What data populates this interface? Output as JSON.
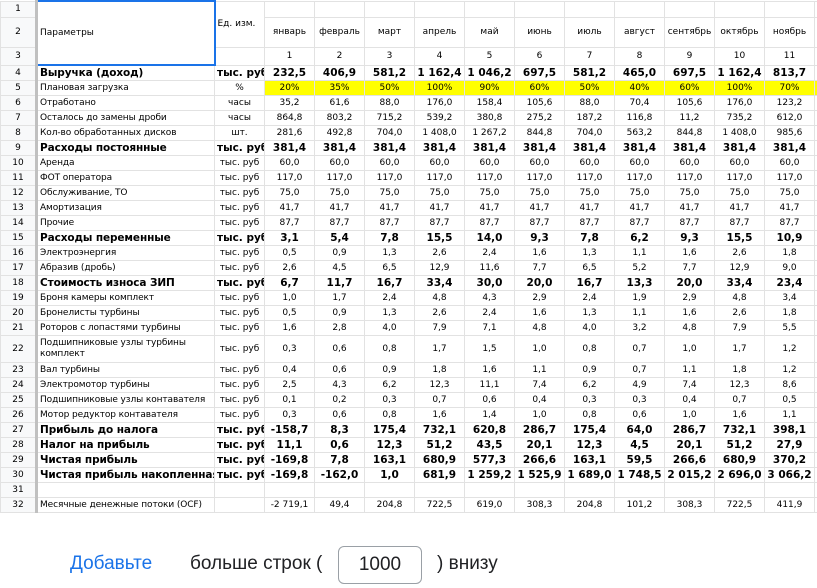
{
  "header": {
    "param_label": "Параметры",
    "unit_label": "Ед. изм.",
    "months": [
      "январь",
      "февраль",
      "март",
      "апрель",
      "май",
      "июнь",
      "июль",
      "август",
      "сентябрь",
      "октябрь",
      "ноябрь",
      "д"
    ],
    "month_numbers": [
      "1",
      "2",
      "3",
      "4",
      "5",
      "6",
      "7",
      "8",
      "9",
      "10",
      "11",
      ""
    ],
    "row_numbers": [
      "1",
      "2",
      "3"
    ]
  },
  "rows": [
    {
      "n": "4",
      "name": "Выручка (доход)",
      "unit": "тыс. руб",
      "bold": true,
      "vals": [
        "232,5",
        "406,9",
        "581,2",
        "1 162,4",
        "1 046,2",
        "697,5",
        "581,2",
        "465,0",
        "697,5",
        "1 162,4",
        "813,7",
        "4"
      ]
    },
    {
      "n": "5",
      "name": "Плановая загрузка",
      "unit": "%",
      "yellow": true,
      "vals": [
        "20%",
        "35%",
        "50%",
        "100%",
        "90%",
        "60%",
        "50%",
        "40%",
        "60%",
        "100%",
        "70%",
        ""
      ]
    },
    {
      "n": "6",
      "name": "Отработано",
      "unit": "часы",
      "vals": [
        "35,2",
        "61,6",
        "88,0",
        "176,0",
        "158,4",
        "105,6",
        "88,0",
        "70,4",
        "105,6",
        "176,0",
        "123,2",
        ""
      ]
    },
    {
      "n": "7",
      "name": "Осталось до замены дроби",
      "unit": "часы",
      "vals": [
        "864,8",
        "803,2",
        "715,2",
        "539,2",
        "380,8",
        "275,2",
        "187,2",
        "116,8",
        "11,2",
        "735,2",
        "612,0",
        ""
      ]
    },
    {
      "n": "8",
      "name": "Кол-во обработанных дисков",
      "unit": "шт.",
      "vals": [
        "281,6",
        "492,8",
        "704,0",
        "1 408,0",
        "1 267,2",
        "844,8",
        "704,0",
        "563,2",
        "844,8",
        "1 408,0",
        "985,6",
        ""
      ]
    },
    {
      "n": "9",
      "name": "Расходы постоянные",
      "unit": "тыс. руб",
      "bold": true,
      "vals": [
        "381,4",
        "381,4",
        "381,4",
        "381,4",
        "381,4",
        "381,4",
        "381,4",
        "381,4",
        "381,4",
        "381,4",
        "381,4",
        "3"
      ]
    },
    {
      "n": "10",
      "name": "Аренда",
      "unit": "тыс. руб",
      "vals": [
        "60,0",
        "60,0",
        "60,0",
        "60,0",
        "60,0",
        "60,0",
        "60,0",
        "60,0",
        "60,0",
        "60,0",
        "60,0",
        ""
      ]
    },
    {
      "n": "11",
      "name": "ФОТ оператора",
      "unit": "тыс. руб",
      "vals": [
        "117,0",
        "117,0",
        "117,0",
        "117,0",
        "117,0",
        "117,0",
        "117,0",
        "117,0",
        "117,0",
        "117,0",
        "117,0",
        ""
      ]
    },
    {
      "n": "12",
      "name": "Обслуживание, ТО",
      "unit": "тыс. руб",
      "vals": [
        "75,0",
        "75,0",
        "75,0",
        "75,0",
        "75,0",
        "75,0",
        "75,0",
        "75,0",
        "75,0",
        "75,0",
        "75,0",
        ""
      ]
    },
    {
      "n": "13",
      "name": "Амортизация",
      "unit": "тыс. руб",
      "vals": [
        "41,7",
        "41,7",
        "41,7",
        "41,7",
        "41,7",
        "41,7",
        "41,7",
        "41,7",
        "41,7",
        "41,7",
        "41,7",
        ""
      ]
    },
    {
      "n": "14",
      "name": "Прочие",
      "unit": "тыс. руб",
      "vals": [
        "87,7",
        "87,7",
        "87,7",
        "87,7",
        "87,7",
        "87,7",
        "87,7",
        "87,7",
        "87,7",
        "87,7",
        "87,7",
        ""
      ]
    },
    {
      "n": "15",
      "name": "Расходы переменные",
      "unit": "тыс. руб",
      "bold": true,
      "vals": [
        "3,1",
        "5,4",
        "7,8",
        "15,5",
        "14,0",
        "9,3",
        "7,8",
        "6,2",
        "9,3",
        "15,5",
        "10,9",
        ""
      ]
    },
    {
      "n": "16",
      "name": "Электроэнергия",
      "unit": "тыс. руб",
      "vals": [
        "0,5",
        "0,9",
        "1,3",
        "2,6",
        "2,4",
        "1,6",
        "1,3",
        "1,1",
        "1,6",
        "2,6",
        "1,8",
        ""
      ]
    },
    {
      "n": "17",
      "name": "Абразив (дробь)",
      "unit": "тыс. руб",
      "vals": [
        "2,6",
        "4,5",
        "6,5",
        "12,9",
        "11,6",
        "7,7",
        "6,5",
        "5,2",
        "7,7",
        "12,9",
        "9,0",
        ""
      ]
    },
    {
      "n": "18",
      "name": "Стоимость износа ЗИП",
      "unit": "тыс. руб",
      "bold": true,
      "vals": [
        "6,7",
        "11,7",
        "16,7",
        "33,4",
        "30,0",
        "20,0",
        "16,7",
        "13,3",
        "20,0",
        "33,4",
        "23,4",
        ""
      ]
    },
    {
      "n": "19",
      "name": "Броня камеры комплект",
      "unit": "тыс. руб",
      "vals": [
        "1,0",
        "1,7",
        "2,4",
        "4,8",
        "4,3",
        "2,9",
        "2,4",
        "1,9",
        "2,9",
        "4,8",
        "3,4",
        ""
      ]
    },
    {
      "n": "20",
      "name": "Бронелисты турбины",
      "unit": "тыс. руб",
      "vals": [
        "0,5",
        "0,9",
        "1,3",
        "2,6",
        "2,4",
        "1,6",
        "1,3",
        "1,1",
        "1,6",
        "2,6",
        "1,8",
        ""
      ]
    },
    {
      "n": "21",
      "name": "Роторов с лопастями турбины",
      "unit": "тыс. руб",
      "vals": [
        "1,6",
        "2,8",
        "4,0",
        "7,9",
        "7,1",
        "4,8",
        "4,0",
        "3,2",
        "4,8",
        "7,9",
        "5,5",
        ""
      ]
    },
    {
      "n": "22",
      "name": "Подшипниковые узлы турбины комплект",
      "unit": "тыс. руб",
      "tall": true,
      "vals": [
        "0,3",
        "0,6",
        "0,8",
        "1,7",
        "1,5",
        "1,0",
        "0,8",
        "0,7",
        "1,0",
        "1,7",
        "1,2",
        ""
      ]
    },
    {
      "n": "23",
      "name": "Вал турбины",
      "unit": "тыс. руб",
      "vals": [
        "0,4",
        "0,6",
        "0,9",
        "1,8",
        "1,6",
        "1,1",
        "0,9",
        "0,7",
        "1,1",
        "1,8",
        "1,2",
        ""
      ]
    },
    {
      "n": "24",
      "name": "Электромотор турбины",
      "unit": "тыс. руб",
      "vals": [
        "2,5",
        "4,3",
        "6,2",
        "12,3",
        "11,1",
        "7,4",
        "6,2",
        "4,9",
        "7,4",
        "12,3",
        "8,6",
        ""
      ]
    },
    {
      "n": "25",
      "name": "Подшипниковые узлы контавателя",
      "unit": "тыс. руб",
      "vals": [
        "0,1",
        "0,2",
        "0,3",
        "0,7",
        "0,6",
        "0,4",
        "0,3",
        "0,3",
        "0,4",
        "0,7",
        "0,5",
        ""
      ]
    },
    {
      "n": "26",
      "name": "Мотор редуктор контавателя",
      "unit": "тыс. руб",
      "vals": [
        "0,3",
        "0,6",
        "0,8",
        "1,6",
        "1,4",
        "1,0",
        "0,8",
        "0,6",
        "1,0",
        "1,6",
        "1,1",
        ""
      ]
    },
    {
      "n": "27",
      "name": "Прибыль до налога",
      "unit": "тыс. руб",
      "bold": true,
      "vals": [
        "-158,7",
        "8,3",
        "175,4",
        "732,1",
        "620,8",
        "286,7",
        "175,4",
        "64,0",
        "286,7",
        "732,1",
        "398,1",
        ""
      ]
    },
    {
      "n": "28",
      "name": "Налог на прибыль",
      "unit": "тыс. руб",
      "bold": true,
      "vals": [
        "11,1",
        "0,6",
        "12,3",
        "51,2",
        "43,5",
        "20,1",
        "12,3",
        "4,5",
        "20,1",
        "51,2",
        "27,9",
        ""
      ]
    },
    {
      "n": "29",
      "name": "Чистая прибыль",
      "unit": "тыс. руб",
      "bold": true,
      "vals": [
        "-169,8",
        "7,8",
        "163,1",
        "680,9",
        "577,3",
        "266,6",
        "163,1",
        "59,5",
        "266,6",
        "680,9",
        "370,2",
        ""
      ]
    },
    {
      "n": "30",
      "name": "Чистая прибыль накопленная",
      "unit": "тыс. руб",
      "bold": true,
      "vals": [
        "-169,8",
        "-162,0",
        "1,0",
        "681,9",
        "1 259,2",
        "1 525,9",
        "1 689,0",
        "1 748,5",
        "2 015,2",
        "2 696,0",
        "3 066,2",
        "3"
      ]
    },
    {
      "n": "31",
      "name": "",
      "unit": "",
      "vals": [
        "",
        "",
        "",
        "",
        "",
        "",
        "",
        "",
        "",
        "",
        "",
        ""
      ]
    },
    {
      "n": "32",
      "name": "Месячные денежные потоки (OCF)",
      "unit": "",
      "vals": [
        "-2 719,1",
        "49,4",
        "204,8",
        "722,5",
        "619,0",
        "308,3",
        "204,8",
        "101,2",
        "308,3",
        "722,5",
        "411,9",
        ""
      ]
    }
  ],
  "footer": {
    "add_label": "Добавьте",
    "more_label": "больше строк (",
    "rows_value": "1000",
    "below_label": ") внизу"
  }
}
